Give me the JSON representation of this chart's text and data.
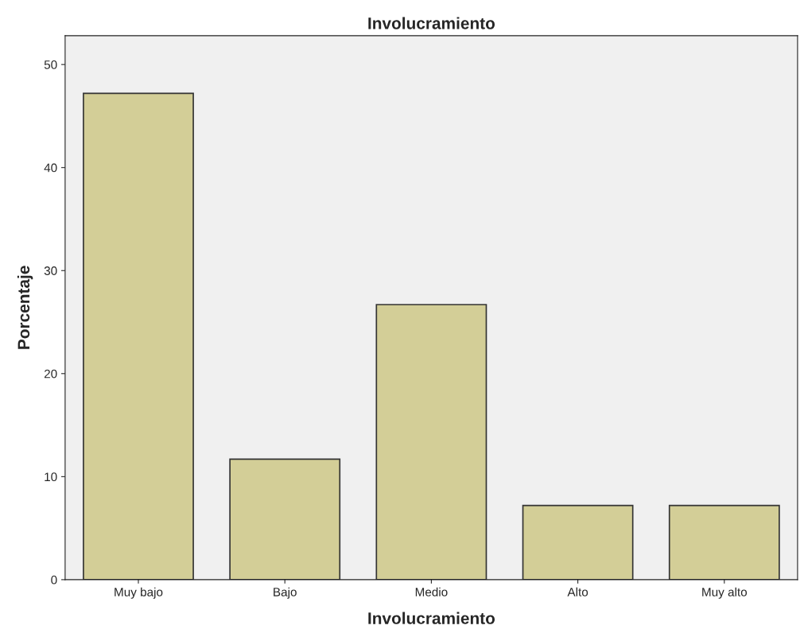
{
  "chart_data": {
    "type": "bar",
    "title": "Involucramiento",
    "xlabel": "Involucramiento",
    "ylabel": "Porcentaje",
    "categories": [
      "Muy bajo",
      "Bajo",
      "Medio",
      "Alto",
      "Muy alto"
    ],
    "values": [
      47.2,
      11.7,
      26.7,
      7.2,
      7.2
    ],
    "color": "#d3ce97",
    "ylim": [
      0,
      52.8
    ],
    "yticks": [
      0,
      10,
      20,
      30,
      40,
      50
    ],
    "grid": false
  }
}
